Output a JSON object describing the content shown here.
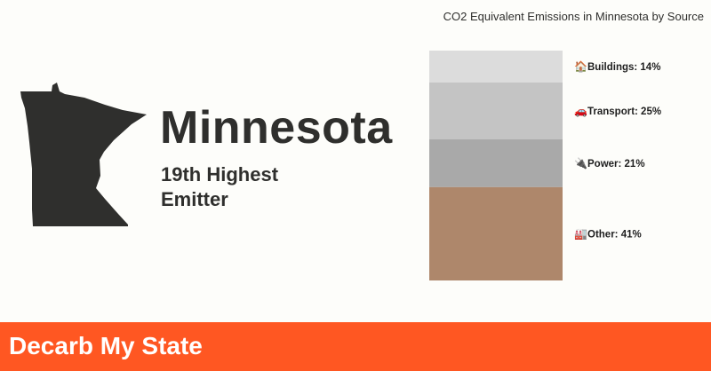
{
  "state": {
    "name": "Minnesota",
    "rank_line1": "19th Highest",
    "rank_line2": "Emitter"
  },
  "footer": {
    "brand": "Decarb My State"
  },
  "chart_data": {
    "type": "bar",
    "stacked": true,
    "title": "CO2 Equivalent Emissions in Minnesota by Source",
    "unit": "%",
    "segments": [
      {
        "name": "Buildings",
        "value": 14,
        "label": "Buildings: 14%",
        "icon": "house-icon",
        "color": "#dcdcdc"
      },
      {
        "name": "Transport",
        "value": 25,
        "label": "Transport: 25%",
        "icon": "car-icon",
        "color": "#c4c4c4"
      },
      {
        "name": "Power",
        "value": 21,
        "label": "Power: 21%",
        "icon": "plug-icon",
        "color": "#a9a9a9"
      },
      {
        "name": "Other",
        "value": 41,
        "label": "Other: 41%",
        "icon": "factory-icon",
        "color": "#ae876b"
      }
    ]
  },
  "colors": {
    "background": "#fdfdfa",
    "map_fill": "#2f2f2d",
    "footer_bg": "#ff5722",
    "footer_text": "#ffffff"
  }
}
